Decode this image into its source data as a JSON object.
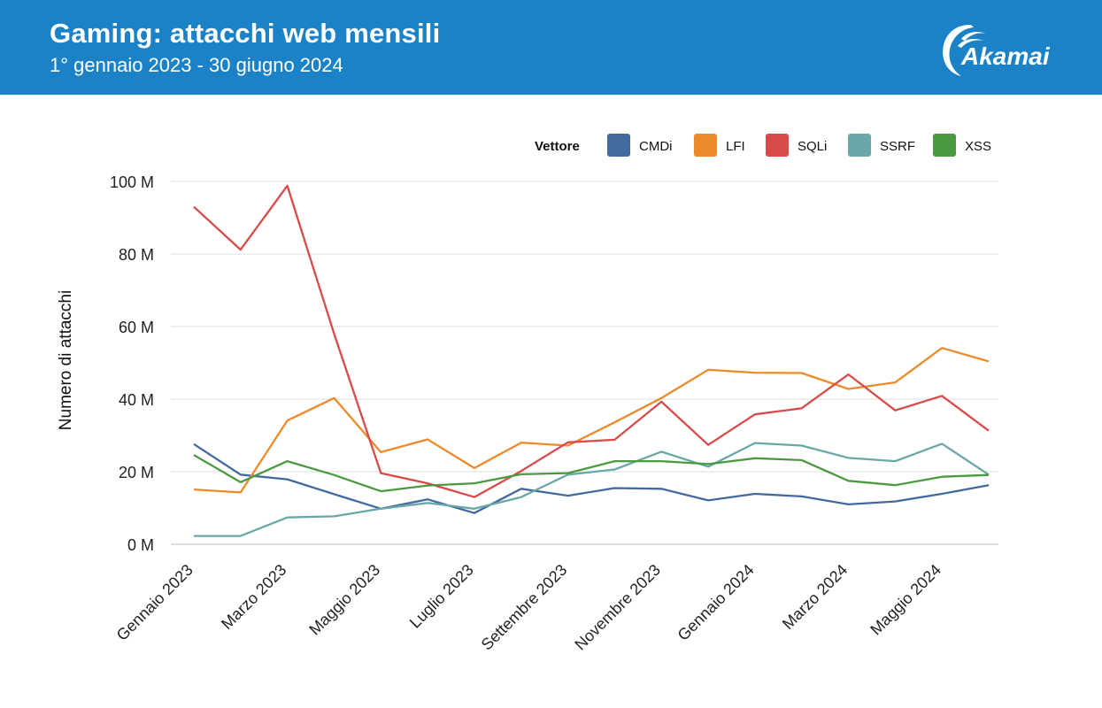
{
  "header": {
    "title": "Gaming: attacchi web mensili",
    "subtitle": "1° gennaio 2023 - 30 giugno 2024",
    "logo_text": "Akamai",
    "background": "#1b82c8"
  },
  "chart_data": {
    "type": "line",
    "ylabel": "Numero di attacchi",
    "ylim": [
      0,
      100
    ],
    "y_unit_suffix": " M",
    "y_ticks": [
      0,
      20,
      40,
      60,
      80,
      100
    ],
    "grid": true,
    "legend": {
      "title": "Vettore",
      "position": "top-right"
    },
    "x": [
      "2023-01",
      "2023-02",
      "2023-03",
      "2023-04",
      "2023-05",
      "2023-06",
      "2023-07",
      "2023-08",
      "2023-09",
      "2023-10",
      "2023-11",
      "2023-12",
      "2024-01",
      "2024-02",
      "2024-03",
      "2024-04",
      "2024-05",
      "2024-06"
    ],
    "x_tick_labels": [
      {
        "x": "2023-01",
        "label": "Gennaio 2023"
      },
      {
        "x": "2023-03",
        "label": "Marzo 2023"
      },
      {
        "x": "2023-05",
        "label": "Maggio 2023"
      },
      {
        "x": "2023-07",
        "label": "Luglio 2023"
      },
      {
        "x": "2023-09",
        "label": "Settembre 2023"
      },
      {
        "x": "2023-11",
        "label": "Novembre 2023"
      },
      {
        "x": "2024-01",
        "label": "Gennaio 2024"
      },
      {
        "x": "2024-03",
        "label": "Marzo 2024"
      },
      {
        "x": "2024-05",
        "label": "Maggio 2024"
      }
    ],
    "series": [
      {
        "name": "CMDi",
        "color": "#44699e",
        "values": [
          27.6,
          19.2,
          17.9,
          13.8,
          9.8,
          12.4,
          8.6,
          15.3,
          13.4,
          15.5,
          15.3,
          12.1,
          13.9,
          13.2,
          11.0,
          11.8,
          13.9,
          16.3
        ]
      },
      {
        "name": "LFI",
        "color": "#ef8a2b",
        "values": [
          15.1,
          14.3,
          34.1,
          40.3,
          25.4,
          28.9,
          21.0,
          28.0,
          27.2,
          33.6,
          40.3,
          48.1,
          47.3,
          47.2,
          42.8,
          44.6,
          54.1,
          50.4
        ]
      },
      {
        "name": "SQLi",
        "color": "#d94a4a",
        "values": [
          93.0,
          81.2,
          98.8,
          58.0,
          19.6,
          16.8,
          13.0,
          20.2,
          28.1,
          28.8,
          39.3,
          27.4,
          35.8,
          37.5,
          46.8,
          36.9,
          40.9,
          31.3
        ]
      },
      {
        "name": "SSRF",
        "color": "#6aa7a9",
        "values": [
          2.3,
          2.3,
          7.4,
          7.7,
          9.8,
          11.4,
          9.8,
          13.0,
          19.2,
          20.6,
          25.5,
          21.4,
          27.9,
          27.2,
          23.8,
          22.9,
          27.7,
          19.2
        ]
      },
      {
        "name": "XSS",
        "color": "#4b9a41",
        "values": [
          24.6,
          17.1,
          22.9,
          19.1,
          14.6,
          16.2,
          16.8,
          19.3,
          19.6,
          22.9,
          22.9,
          22.1,
          23.7,
          23.2,
          17.5,
          16.3,
          18.6,
          19.1
        ]
      }
    ]
  }
}
